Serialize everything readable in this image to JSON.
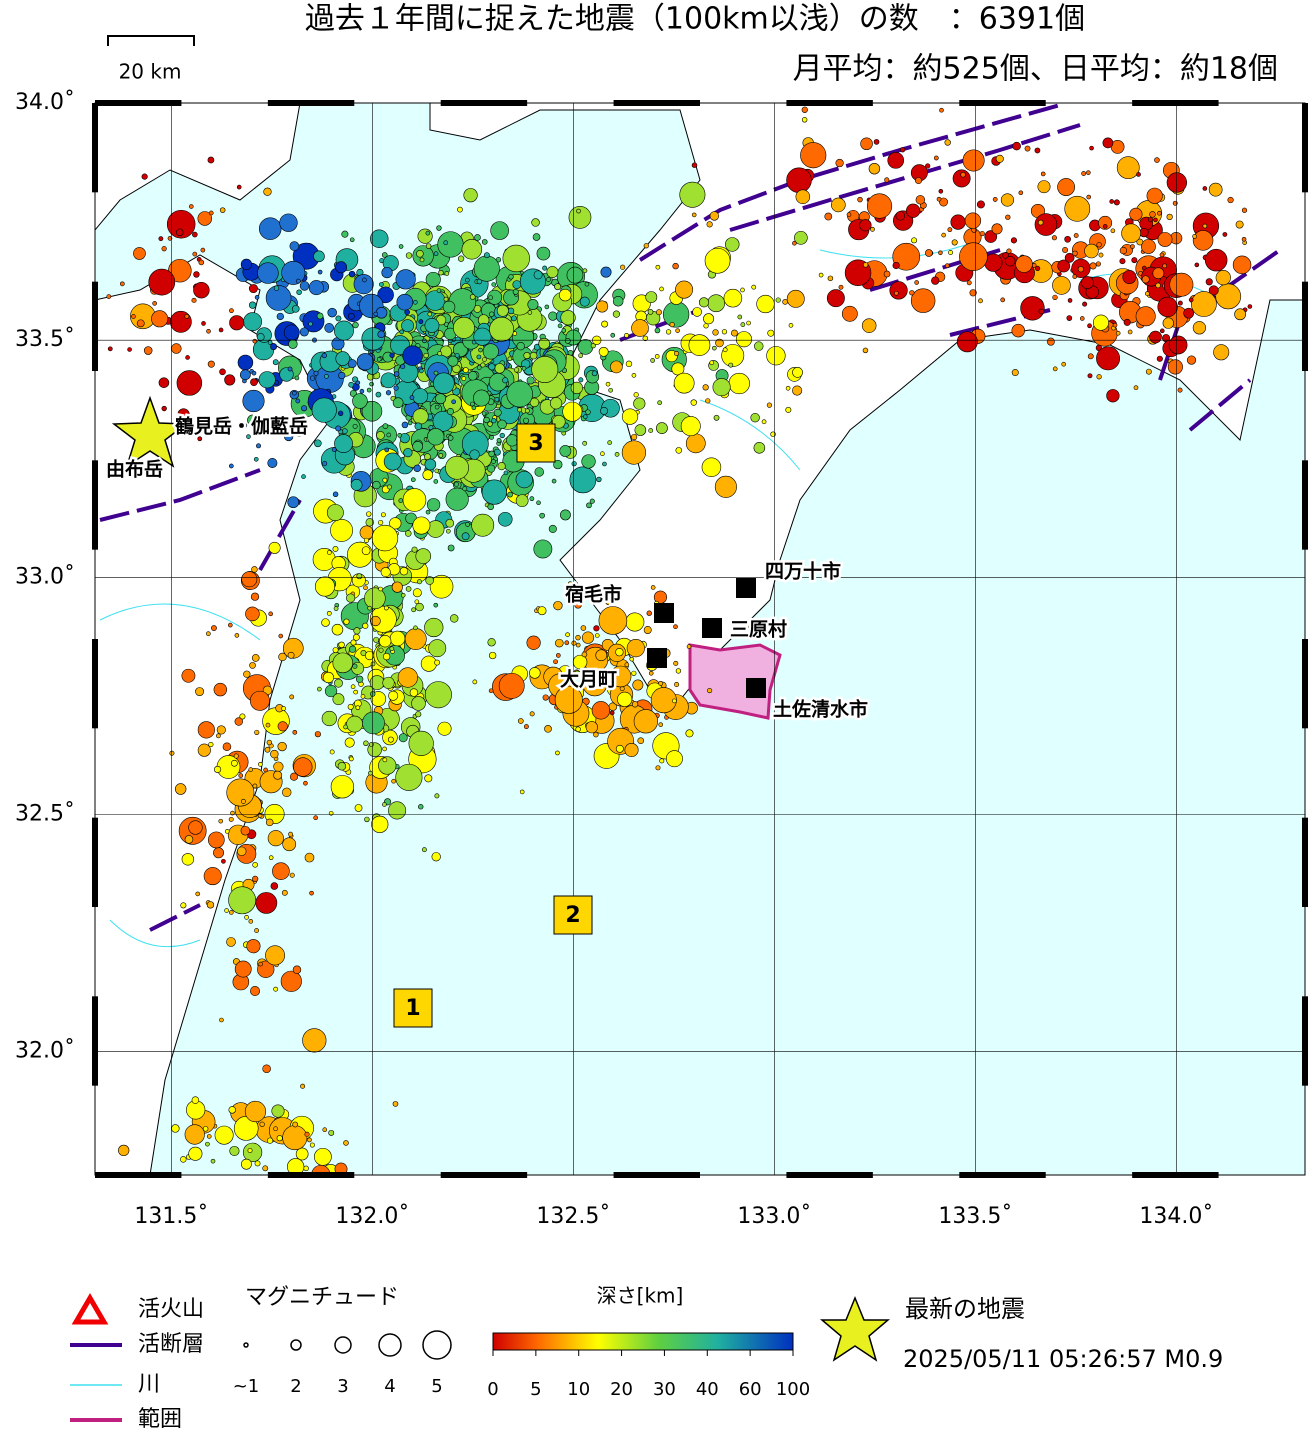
{
  "header": {
    "title": "過去１年間に捉えた地震（100km以浅）の数　：6391個",
    "subtitle": "月平均：約525個、日平均：約18個"
  },
  "scale_bar": "20 km",
  "map": {
    "xlim": [
      131.31,
      134.32
    ],
    "ylim": [
      31.74,
      34.0
    ],
    "xticks": [
      {
        "value": 131.5,
        "label": "131.5˚"
      },
      {
        "value": 132.0,
        "label": "132.0˚"
      },
      {
        "value": 132.5,
        "label": "132.5˚"
      },
      {
        "value": 133.0,
        "label": "133.0˚"
      },
      {
        "value": 133.5,
        "label": "133.5˚"
      },
      {
        "value": 134.0,
        "label": "134.0˚"
      }
    ],
    "yticks": [
      {
        "value": 32.0,
        "label": "32.0˚"
      },
      {
        "value": 32.5,
        "label": "32.5˚"
      },
      {
        "value": 33.0,
        "label": "33.0˚"
      },
      {
        "value": 33.5,
        "label": "33.5˚"
      },
      {
        "value": 34.0,
        "label": "34.0˚"
      }
    ]
  },
  "places": [
    {
      "label": "鶴見岳・伽藍岳"
    },
    {
      "label": "由布岳"
    },
    {
      "label": "四万十市"
    },
    {
      "label": "宿毛市"
    },
    {
      "label": "三原村"
    },
    {
      "label": "大月町"
    },
    {
      "label": "土佐清水市"
    }
  ],
  "areas": [
    "1",
    "2",
    "3"
  ],
  "legend": {
    "volcano": "活火山",
    "fault": "活断層",
    "river": "川",
    "range": "範囲",
    "magnitude_title": "マグニチュード",
    "magnitudes": [
      "~1",
      "2",
      "3",
      "4",
      "5"
    ],
    "depth_title": "深さ[km]",
    "depths": [
      0,
      5,
      10,
      20,
      30,
      40,
      60,
      100
    ],
    "latest_title": "最新の地震",
    "latest": "2025/05/11 05:26:57 M0.9"
  }
}
